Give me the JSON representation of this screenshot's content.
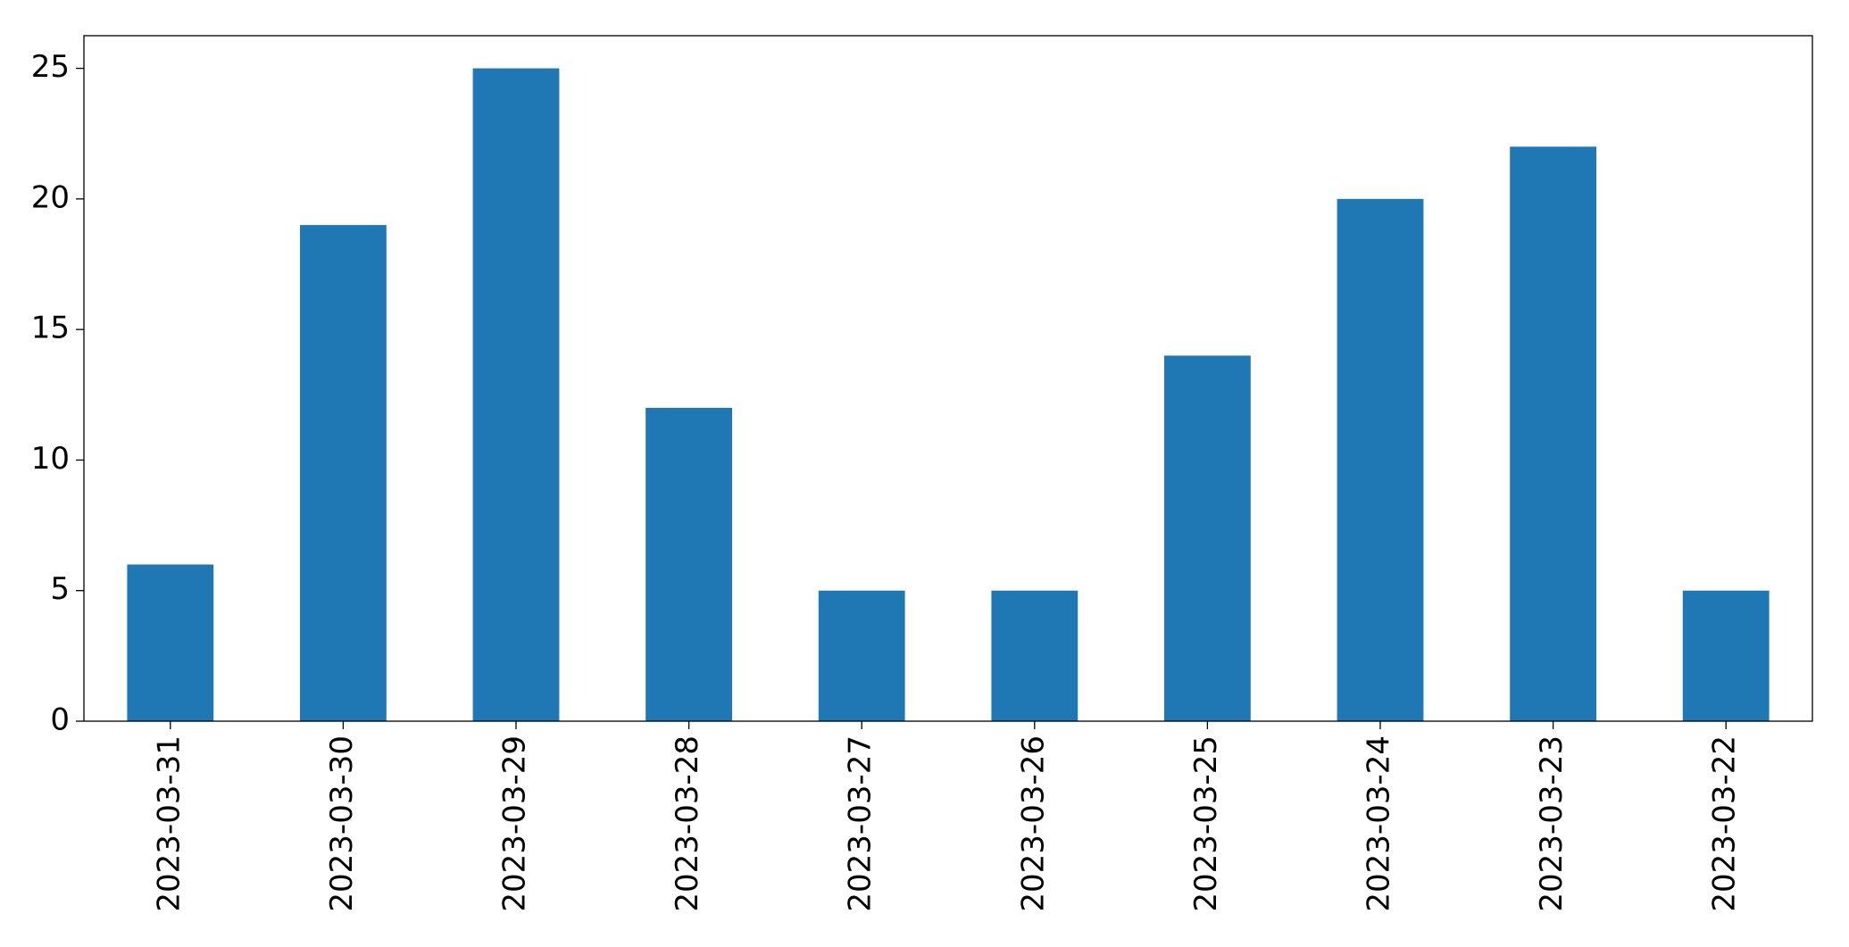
{
  "chart_data": {
    "type": "bar",
    "categories": [
      "2023-03-31",
      "2023-03-30",
      "2023-03-29",
      "2023-03-28",
      "2023-03-27",
      "2023-03-26",
      "2023-03-25",
      "2023-03-24",
      "2023-03-23",
      "2023-03-22"
    ],
    "values": [
      6,
      19,
      25,
      12,
      5,
      5,
      14,
      20,
      22,
      5
    ],
    "color": "#1f77b4",
    "ylim": [
      0,
      26.25
    ],
    "yticks": [
      0,
      5,
      10,
      15,
      20,
      25
    ],
    "grid": false
  }
}
